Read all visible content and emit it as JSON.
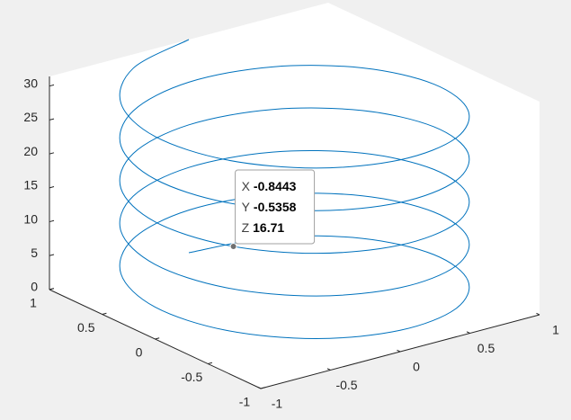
{
  "chart_data": {
    "type": "line3d",
    "series": [
      {
        "color": "#0072bd",
        "x": [
          0,
          0.5,
          0.866,
          1,
          0.866,
          0.5,
          0,
          -0.5,
          -0.866,
          -1,
          -0.866,
          -0.5,
          0,
          0.5,
          0.866,
          1,
          0.866,
          0.5,
          0,
          -0.5,
          -0.866,
          -1,
          -0.866,
          -0.5,
          0,
          0.5,
          0.866,
          1,
          0.866,
          0.5,
          0,
          -0.5,
          -0.866,
          -1,
          -0.866,
          -0.5,
          0,
          0.5,
          0.866,
          1,
          0.866,
          0.5,
          0,
          -0.5,
          -0.866,
          -1,
          -0.866,
          -0.5,
          0,
          0.5,
          0.866,
          1,
          0.866,
          0.5,
          0,
          -0.5,
          -0.866,
          -1,
          -0.866,
          -0.5,
          0
        ],
        "y": [
          1,
          0.866,
          0.5,
          0,
          -0.5,
          -0.866,
          -1,
          -0.866,
          -0.5,
          0,
          0.5,
          0.866,
          1,
          0.866,
          0.5,
          0,
          -0.5,
          -0.866,
          -1,
          -0.866,
          -0.5,
          0,
          0.5,
          0.866,
          1,
          0.866,
          0.5,
          0,
          -0.5,
          -0.866,
          -1,
          -0.866,
          -0.5,
          0,
          0.5,
          0.866,
          1,
          0.866,
          0.5,
          0,
          -0.5,
          -0.866,
          -1,
          -0.866,
          -0.5,
          0,
          0.5,
          0.866,
          1,
          0.866,
          0.5,
          0,
          -0.5,
          -0.866,
          -1,
          -0.866,
          -0.5,
          0,
          0.5,
          0.866,
          1
        ],
        "z": [
          0,
          0.524,
          1.047,
          1.571,
          2.094,
          2.618,
          3.142,
          3.665,
          4.189,
          4.712,
          5.236,
          5.76,
          6.283,
          6.807,
          7.33,
          7.854,
          8.378,
          8.901,
          9.425,
          9.948,
          10.472,
          10.996,
          11.519,
          12.043,
          12.566,
          13.09,
          13.614,
          14.137,
          14.661,
          15.184,
          15.708,
          16.232,
          16.755,
          17.279,
          17.802,
          18.326,
          18.85,
          19.373,
          19.897,
          20.42,
          20.944,
          21.468,
          21.991,
          22.515,
          23.038,
          23.562,
          24.086,
          24.609,
          25.133,
          25.656,
          26.18,
          26.704,
          27.227,
          27.751,
          28.274,
          28.798,
          29.322,
          29.845,
          30.369,
          30.892,
          31.416
        ]
      }
    ],
    "xlim": [
      -1,
      1
    ],
    "ylim": [
      -1,
      1
    ],
    "zlim": [
      0,
      31.416
    ],
    "xticks": [
      -1,
      -0.5,
      0,
      0.5,
      1
    ],
    "yticks": [
      -1,
      -0.5,
      0,
      0.5,
      1
    ],
    "zticks": [
      0,
      5,
      10,
      15,
      20,
      25,
      30
    ],
    "datatip": {
      "x_label": "X",
      "y_label": "Y",
      "z_label": "Z",
      "x": -0.8443,
      "y": -0.5358,
      "z": 16.71
    }
  }
}
